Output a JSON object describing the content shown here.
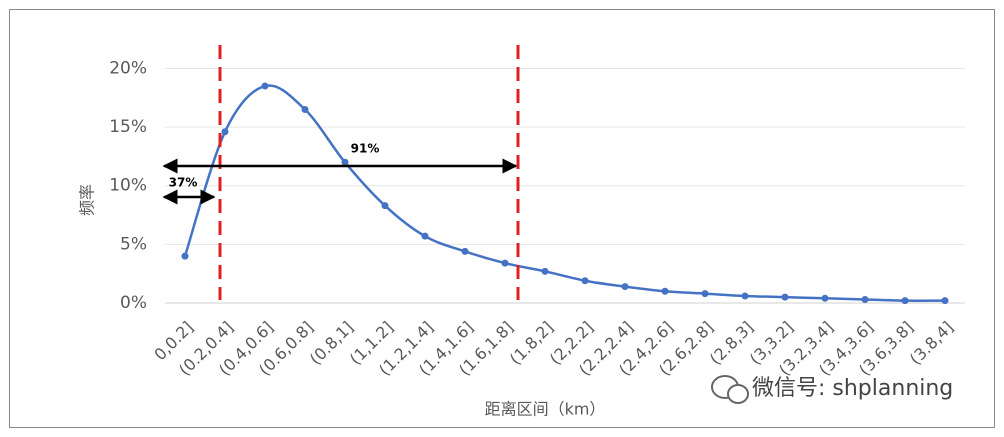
{
  "chart_data": {
    "type": "line",
    "categories": [
      "0,0.2]",
      "(0.2,0.4]",
      "(0.4,0.6]",
      "(0.6,0.8]",
      "(0.8,1]",
      "(1,1.2]",
      "(1.2,1.4]",
      "(1.4,1.6]",
      "(1.6,1.8]",
      "(1.8,2]",
      "(2,2.2]",
      "(2.2,2.4]",
      "(2.4,2.6]",
      "(2.6,2.8]",
      "(2.8,3]",
      "(3,3.2]",
      "(3.2,3.4]",
      "(3.4,3.6]",
      "(3.6,3.8]",
      "(3.8,4]"
    ],
    "values": [
      4.0,
      14.6,
      18.5,
      16.5,
      12.0,
      8.3,
      5.7,
      4.4,
      3.4,
      2.7,
      1.9,
      1.4,
      1.0,
      0.8,
      0.6,
      0.5,
      0.4,
      0.3,
      0.2,
      0.2
    ],
    "color": "#4472c4",
    "ylim": [
      0,
      22
    ],
    "yticks": [
      {
        "value": 0,
        "label": "0%"
      },
      {
        "value": 5,
        "label": "5%"
      },
      {
        "value": 10,
        "label": "10%"
      },
      {
        "value": 15,
        "label": "15%"
      },
      {
        "value": 20,
        "label": "20%"
      }
    ],
    "grid": true,
    "y_label": "频率",
    "x_label": "距离区间（km）",
    "annotations": [
      "37%",
      "91%"
    ],
    "watermark": "微信号: shplanning"
  }
}
